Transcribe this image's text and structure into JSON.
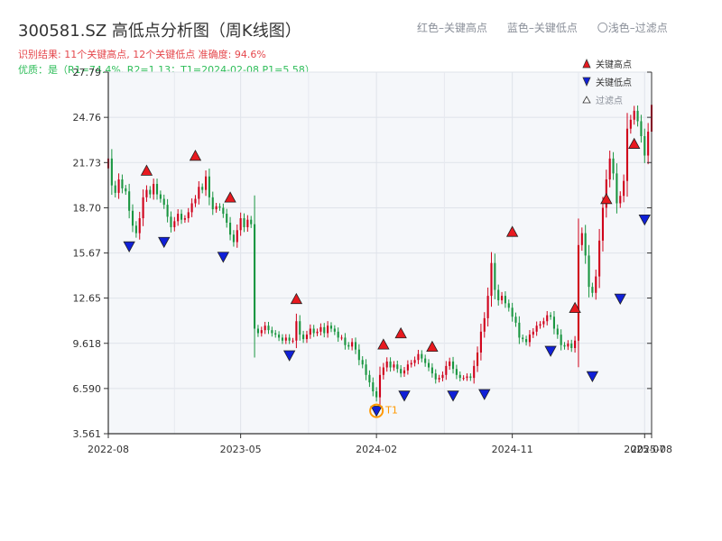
{
  "header": {
    "title": "300581.SZ 高低点分析图（周K线图）",
    "result_line": "识别结果: 11个关键高点, 12个关键低点  准确度: 94.6%",
    "quality_line": "优质：是（R1=74.4%, R2=1.13；T1=2024-02-08 P1=5.58）"
  },
  "top_legend": {
    "red": "红色–关键高点",
    "blue": "蓝色–关键低点",
    "light": "〇浅色–过滤点"
  },
  "side_legend": {
    "high": "关键高点",
    "low": "关键低点",
    "filtered": "过滤点"
  },
  "colors": {
    "up": "#d0021b",
    "down": "#1a9641",
    "high_marker": "#e8191f",
    "low_marker": "#1020d8",
    "t1_ring": "#ff9900"
  },
  "chart_data": {
    "type": "candlestick",
    "title": "300581.SZ 高低点分析图（周K线图）",
    "xlabel": "",
    "ylabel": "",
    "ylim": [
      3.561,
      27.79
    ],
    "yticks": [
      "3.561",
      "6.590",
      "9.618",
      "12.65",
      "15.67",
      "18.70",
      "21.73",
      "24.76",
      "27.79"
    ],
    "xlim_weeks": [
      0,
      156
    ],
    "xticks": [
      {
        "week": 0,
        "label": "2022-08"
      },
      {
        "week": 38,
        "label": "2023-05"
      },
      {
        "week": 77,
        "label": "2024-02"
      },
      {
        "week": 116,
        "label": "2024-11"
      },
      {
        "week": 154,
        "label": "2025-07"
      },
      {
        "week": 156,
        "label": "2025-08"
      }
    ],
    "close_path": [
      [
        0,
        22.0
      ],
      [
        1,
        20.2
      ],
      [
        2,
        19.7
      ],
      [
        3,
        20.6
      ],
      [
        4,
        20.0
      ],
      [
        5,
        19.8
      ],
      [
        6,
        18.5
      ],
      [
        7,
        17.5
      ],
      [
        8,
        17.0
      ],
      [
        9,
        18.0
      ],
      [
        10,
        19.4
      ],
      [
        11,
        19.9
      ],
      [
        12,
        19.6
      ],
      [
        13,
        20.3
      ],
      [
        14,
        19.6
      ],
      [
        15,
        19.3
      ],
      [
        16,
        18.9
      ],
      [
        17,
        18.1
      ],
      [
        18,
        17.4
      ],
      [
        19,
        17.8
      ],
      [
        20,
        18.3
      ],
      [
        21,
        17.9
      ],
      [
        22,
        18.0
      ],
      [
        23,
        18.4
      ],
      [
        24,
        19.0
      ],
      [
        25,
        19.3
      ],
      [
        26,
        20.1
      ],
      [
        27,
        19.9
      ],
      [
        28,
        20.8
      ],
      [
        29,
        19.4
      ],
      [
        30,
        18.6
      ],
      [
        31,
        18.8
      ],
      [
        32,
        18.7
      ],
      [
        33,
        18.3
      ],
      [
        34,
        17.7
      ],
      [
        35,
        16.9
      ],
      [
        36,
        16.4
      ],
      [
        37,
        17.2
      ],
      [
        38,
        18.0
      ],
      [
        39,
        17.4
      ],
      [
        40,
        17.9
      ],
      [
        41,
        17.6
      ],
      [
        42,
        10.6
      ],
      [
        43,
        10.3
      ],
      [
        44,
        10.5
      ],
      [
        45,
        10.8
      ],
      [
        46,
        10.5
      ],
      [
        47,
        10.3
      ],
      [
        48,
        10.2
      ],
      [
        49,
        10.0
      ],
      [
        50,
        9.8
      ],
      [
        51,
        10.0
      ],
      [
        52,
        9.8
      ],
      [
        53,
        9.8
      ],
      [
        54,
        11.1
      ],
      [
        55,
        10.2
      ],
      [
        56,
        9.9
      ],
      [
        57,
        10.2
      ],
      [
        58,
        10.6
      ],
      [
        59,
        10.3
      ],
      [
        60,
        10.4
      ],
      [
        61,
        10.7
      ],
      [
        62,
        10.3
      ],
      [
        63,
        10.8
      ],
      [
        64,
        10.6
      ],
      [
        65,
        10.4
      ],
      [
        66,
        10.0
      ],
      [
        67,
        10.0
      ],
      [
        68,
        9.5
      ],
      [
        69,
        9.4
      ],
      [
        70,
        9.7
      ],
      [
        71,
        9.2
      ],
      [
        72,
        8.5
      ],
      [
        73,
        8.2
      ],
      [
        74,
        7.5
      ],
      [
        75,
        7.0
      ],
      [
        76,
        6.4
      ],
      [
        77,
        6.0
      ],
      [
        78,
        7.5
      ],
      [
        79,
        8.0
      ],
      [
        80,
        8.4
      ],
      [
        81,
        8.0
      ],
      [
        82,
        8.2
      ],
      [
        83,
        7.9
      ],
      [
        84,
        7.6
      ],
      [
        85,
        7.8
      ],
      [
        86,
        8.2
      ],
      [
        87,
        8.3
      ],
      [
        88,
        8.5
      ],
      [
        89,
        8.9
      ],
      [
        90,
        8.6
      ],
      [
        91,
        8.3
      ],
      [
        92,
        8.0
      ],
      [
        93,
        7.6
      ],
      [
        94,
        7.2
      ],
      [
        95,
        7.3
      ],
      [
        96,
        7.5
      ],
      [
        97,
        8.1
      ],
      [
        98,
        8.4
      ],
      [
        99,
        7.9
      ],
      [
        100,
        7.5
      ],
      [
        101,
        7.3
      ],
      [
        102,
        7.3
      ],
      [
        103,
        7.4
      ],
      [
        104,
        7.3
      ],
      [
        105,
        8.1
      ],
      [
        106,
        9.0
      ],
      [
        107,
        10.4
      ],
      [
        108,
        11.3
      ],
      [
        109,
        12.8
      ],
      [
        110,
        15.0
      ],
      [
        111,
        13.2
      ],
      [
        112,
        12.5
      ],
      [
        113,
        12.8
      ],
      [
        114,
        12.3
      ],
      [
        115,
        12.0
      ],
      [
        116,
        11.4
      ],
      [
        117,
        11.0
      ],
      [
        118,
        10.0
      ],
      [
        119,
        9.9
      ],
      [
        120,
        9.7
      ],
      [
        121,
        10.2
      ],
      [
        122,
        10.4
      ],
      [
        123,
        10.8
      ],
      [
        124,
        10.9
      ],
      [
        125,
        11.1
      ],
      [
        126,
        11.5
      ],
      [
        127,
        11.4
      ],
      [
        128,
        10.6
      ],
      [
        129,
        10.2
      ],
      [
        130,
        9.5
      ],
      [
        131,
        9.4
      ],
      [
        132,
        9.6
      ],
      [
        133,
        9.3
      ],
      [
        134,
        9.8
      ],
      [
        135,
        16.2
      ],
      [
        136,
        17.0
      ],
      [
        137,
        15.5
      ],
      [
        138,
        13.4
      ],
      [
        139,
        13.0
      ],
      [
        140,
        14.1
      ],
      [
        141,
        16.5
      ],
      [
        142,
        18.7
      ],
      [
        143,
        20.6
      ],
      [
        144,
        22.0
      ],
      [
        145,
        21.0
      ],
      [
        146,
        19.0
      ],
      [
        147,
        19.5
      ],
      [
        148,
        20.5
      ],
      [
        149,
        24.0
      ],
      [
        150,
        24.6
      ],
      [
        151,
        25.2
      ],
      [
        152,
        24.5
      ],
      [
        153,
        23.5
      ],
      [
        154,
        22.2
      ],
      [
        155,
        23.8
      ],
      [
        156,
        25.6
      ]
    ],
    "key_highs": [
      {
        "week": 11,
        "value": 20.7
      },
      {
        "week": 25,
        "value": 21.7
      },
      {
        "week": 35,
        "value": 18.9
      },
      {
        "week": 54,
        "value": 12.1
      },
      {
        "week": 79,
        "value": 9.05
      },
      {
        "week": 84,
        "value": 9.8
      },
      {
        "week": 93,
        "value": 8.9
      },
      {
        "week": 116,
        "value": 16.6
      },
      {
        "week": 134,
        "value": 11.5
      },
      {
        "week": 143,
        "value": 18.8
      },
      {
        "week": 151,
        "value": 22.5
      }
    ],
    "key_lows": [
      {
        "week": 6,
        "value": 16.6
      },
      {
        "week": 16,
        "value": 16.9
      },
      {
        "week": 33,
        "value": 15.9
      },
      {
        "week": 52,
        "value": 9.3
      },
      {
        "week": 77,
        "value": 5.58
      },
      {
        "week": 85,
        "value": 6.6
      },
      {
        "week": 99,
        "value": 6.6
      },
      {
        "week": 108,
        "value": 6.7
      },
      {
        "week": 127,
        "value": 9.6
      },
      {
        "week": 139,
        "value": 7.9
      },
      {
        "week": 147,
        "value": 13.1
      },
      {
        "week": 154,
        "value": 18.4
      }
    ],
    "filtered_points": [],
    "annotation": {
      "week": 77,
      "value": 5.58,
      "label": "T1"
    },
    "grid": true,
    "legend": "top-right"
  }
}
